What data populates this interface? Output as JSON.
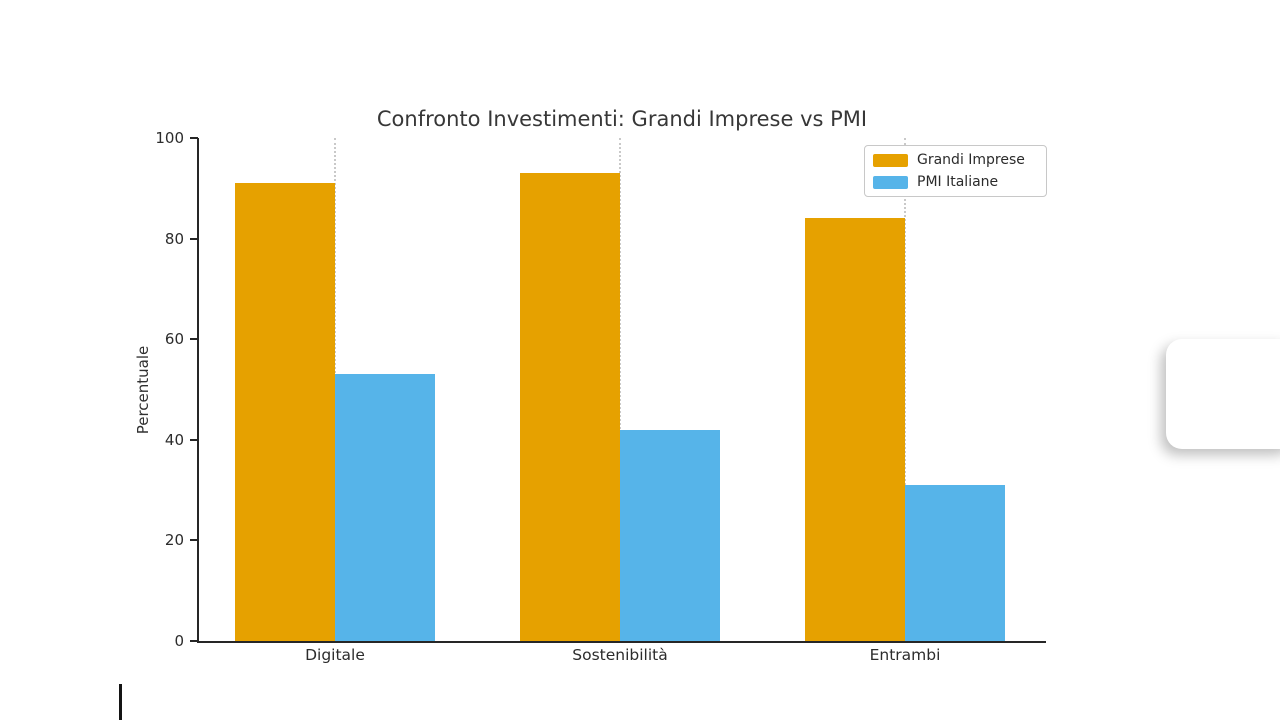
{
  "window": {
    "background": "#ffffff"
  },
  "chart_data": {
    "type": "bar",
    "title": "Confronto Investimenti: Grandi Imprese vs PMI",
    "xlabel": "",
    "ylabel": "Percentuale",
    "categories": [
      "Digitale",
      "Sostenibilità",
      "Entrambi"
    ],
    "series": [
      {
        "name": "Grandi Imprese",
        "color": "#E6A100",
        "values": [
          91,
          93,
          84
        ]
      },
      {
        "name": "PMI Italiane",
        "color": "#56B4E9",
        "values": [
          53,
          42,
          31
        ]
      }
    ],
    "ylim": [
      0,
      100
    ],
    "yticks": [
      "0",
      "20",
      "40",
      "60",
      "80",
      "100"
    ],
    "grid": {
      "style": "vertical dotted at category centers",
      "color": "#c9c9c9"
    },
    "legend_position": "upper right",
    "axis_color": "#262626",
    "text_color": "#2c2c2c"
  },
  "overlay": {
    "text_cursor_visible": true,
    "right_edge_panel_visible": true
  }
}
